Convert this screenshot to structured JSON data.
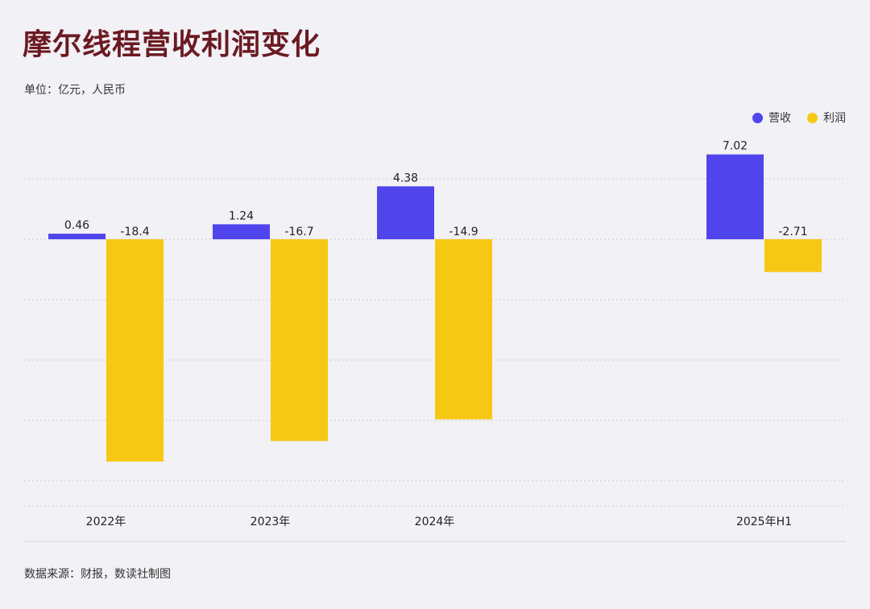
{
  "header": {
    "title": "摩尔线程营收利润变化",
    "unit": "单位：亿元，人民币"
  },
  "footer": {
    "source": "数据来源：财报，数读社制图"
  },
  "colors": {
    "revenue": "#5044ec",
    "profit": "#f6c814",
    "title": "#6b1a22"
  },
  "chart_data": {
    "type": "bar",
    "categories": [
      "2022年",
      "2023年",
      "2024年",
      "2025年H1"
    ],
    "series": [
      {
        "name": "营收",
        "values": [
          0.46,
          1.24,
          4.38,
          7.02
        ],
        "labels": [
          "0.46",
          "1.24",
          "4.38",
          "7.02"
        ]
      },
      {
        "name": "利润",
        "values": [
          -18.4,
          -16.7,
          -14.9,
          -2.71
        ],
        "labels": [
          "-18.4",
          "-16.7",
          "-14.9",
          "-2.71"
        ]
      }
    ],
    "ylim": [
      -20,
      8
    ],
    "grid": true,
    "legend": "top-right"
  }
}
